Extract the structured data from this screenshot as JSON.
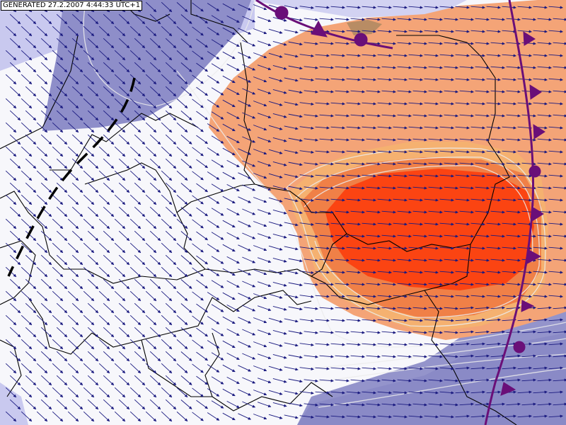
{
  "header": {
    "generated": "GENERATED 27.2.2007 4:44:33 UTC+1"
  }
}
